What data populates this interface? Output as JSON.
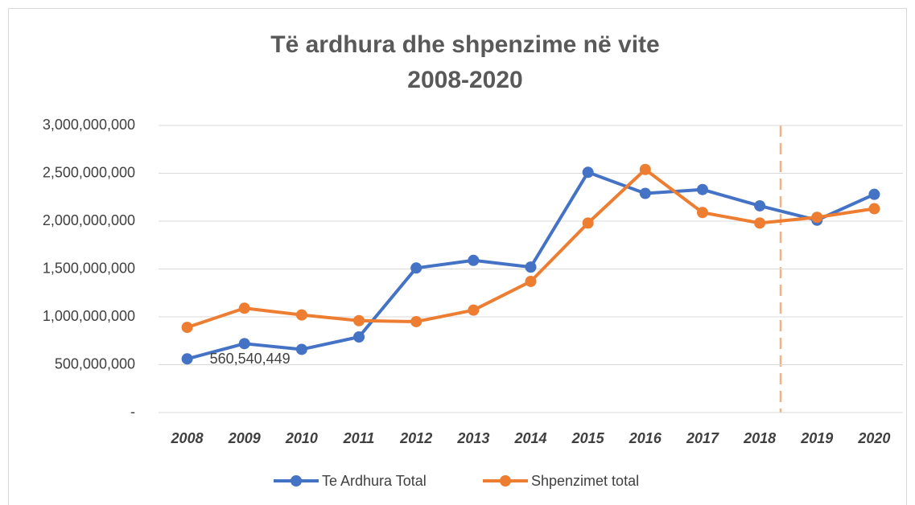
{
  "chart_data": {
    "type": "line",
    "title": [
      "Të ardhura dhe shpenzime në vite",
      "2008-2020"
    ],
    "categories": [
      "2008",
      "2009",
      "2010",
      "2011",
      "2012",
      "2013",
      "2014",
      "2015",
      "2016",
      "2017",
      "2018",
      "2019",
      "2020"
    ],
    "series": [
      {
        "name": "Te Ardhura Total",
        "color": "#4472c4",
        "values": [
          560540449,
          720000000,
          660000000,
          790000000,
          1510000000,
          1590000000,
          1520000000,
          2510000000,
          2290000000,
          2330000000,
          2160000000,
          2010000000,
          2280000000
        ],
        "value_labels": [
          "560,540,449",
          null,
          null,
          null,
          null,
          null,
          null,
          null,
          null,
          null,
          null,
          null,
          null
        ]
      },
      {
        "name": "Shpenzimet total",
        "color": "#ed7d31",
        "values": [
          890000000,
          1090000000,
          1020000000,
          960000000,
          950000000,
          1070000000,
          1370000000,
          1980000000,
          2540000000,
          2090000000,
          1980000000,
          2040000000,
          2130000000
        ]
      }
    ],
    "ylim": [
      0,
      3000000000
    ],
    "yticks": [
      {
        "value": 0,
        "label": "-"
      },
      {
        "value": 500000000,
        "label": "500,000,000"
      },
      {
        "value": 1000000000,
        "label": "1,000,000,000"
      },
      {
        "value": 1500000000,
        "label": "1,500,000,000"
      },
      {
        "value": 2000000000,
        "label": "2,000,000,000"
      },
      {
        "value": 2500000000,
        "label": "2,500,000,000"
      },
      {
        "value": 3000000000,
        "label": "3,000,000,000"
      }
    ],
    "grid": true,
    "legend": "bottom"
  }
}
